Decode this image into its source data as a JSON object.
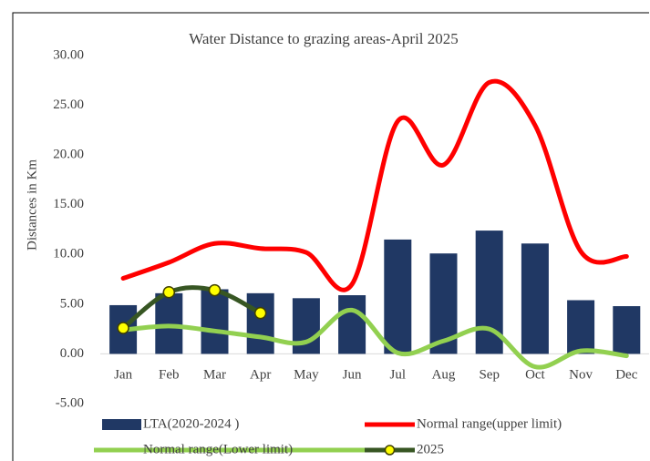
{
  "chart_data": {
    "type": "combo",
    "title": "Water Distance to grazing areas-April 2025",
    "y_label": "Distances in Km",
    "categories": [
      "Jan",
      "Feb",
      "Mar",
      "Apr",
      "May",
      "Jun",
      "Jul",
      "Aug",
      "Sep",
      "Oct",
      "Nov",
      "Dec"
    ],
    "series": [
      {
        "name": "LTA(2020-2024 )",
        "type": "bar",
        "color": "#203864",
        "values": [
          4.9,
          6.1,
          6.5,
          6.1,
          5.6,
          5.9,
          11.5,
          10.1,
          12.4,
          11.1,
          5.4,
          4.8
        ]
      },
      {
        "name": "Normal range(upper limit)",
        "type": "line",
        "color": "#ff0000",
        "values": [
          7.6,
          9.2,
          11.1,
          10.6,
          10.2,
          7.0,
          23.4,
          19.0,
          27.3,
          23.0,
          10.3,
          9.8
        ]
      },
      {
        "name": "Normal range(Lower limit)",
        "type": "line",
        "color": "#92d050",
        "values": [
          2.4,
          2.8,
          2.3,
          1.7,
          1.2,
          4.4,
          0.1,
          1.3,
          2.5,
          -1.3,
          0.3,
          -0.2
        ]
      },
      {
        "name": "2025",
        "type": "line",
        "color": "#375623",
        "marker_color": "#ffff00",
        "values": [
          2.6,
          6.2,
          6.4,
          4.1,
          null,
          null,
          null,
          null,
          null,
          null,
          null,
          null
        ]
      }
    ],
    "ylim": [
      -5,
      30
    ],
    "yticks": [
      {
        "value": -5,
        "label": "-5.00"
      },
      {
        "value": 0,
        "label": "0.00"
      },
      {
        "value": 5,
        "label": "5.00"
      },
      {
        "value": 10,
        "label": "10.00"
      },
      {
        "value": 15,
        "label": "15.00"
      },
      {
        "value": 20,
        "label": "20.00"
      },
      {
        "value": 25,
        "label": "25.00"
      },
      {
        "value": 30,
        "label": "30.00"
      }
    ],
    "grid": false,
    "legend": "bottom"
  }
}
